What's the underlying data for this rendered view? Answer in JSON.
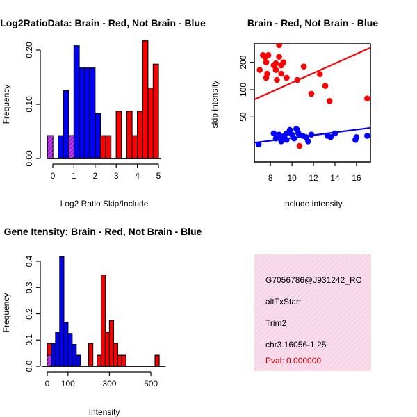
{
  "colors": {
    "brain": "#ff0000",
    "not_brain": "#0000ff",
    "overlap": "#a020f0",
    "pval": "#cc0000",
    "panel_fill": "#f8dcec",
    "panel_hatch": "#efb8d6"
  },
  "chart_data": [
    {
      "type": "bar",
      "title": "Log2RatioData: Brain - Red, Not Brain - Blue",
      "xlabel": "Log2 Ratio Skip/Include",
      "ylabel": "Frequency",
      "xlim": [
        0,
        5
      ],
      "ylim": [
        0,
        0.2
      ],
      "xticks": [
        "0",
        "1",
        "2",
        "3",
        "4",
        "5"
      ],
      "yticks": [
        "0.00",
        "0.10",
        "0.20"
      ],
      "bin_width": 0.25,
      "series": [
        {
          "name": "Not Brain",
          "color": "blue",
          "bins": [
            [
              0.25,
              0.042
            ],
            [
              0.5,
              0.125
            ],
            [
              0.75,
              0.042
            ],
            [
              1.0,
              0.208
            ],
            [
              1.25,
              0.167
            ],
            [
              1.5,
              0.167
            ],
            [
              1.75,
              0.167
            ],
            [
              2.0,
              0.083
            ]
          ]
        },
        {
          "name": "Brain",
          "color": "red",
          "bins": [
            [
              -0.25,
              0.042
            ],
            [
              0.75,
              0.042
            ],
            [
              2.25,
              0.042
            ],
            [
              2.5,
              0.042
            ],
            [
              3.0,
              0.087
            ],
            [
              3.5,
              0.087
            ],
            [
              3.75,
              0.042
            ],
            [
              4.0,
              0.087
            ],
            [
              4.25,
              0.217
            ],
            [
              4.5,
              0.13
            ],
            [
              4.75,
              0.174
            ]
          ]
        },
        {
          "name": "Overlap",
          "color": "purple",
          "bins": [
            [
              -0.25,
              0.042
            ],
            [
              0.75,
              0.042
            ]
          ]
        }
      ]
    },
    {
      "type": "scatter",
      "title": "Brain - Red, Not Brain - Blue",
      "xlabel": "include intensity",
      "ylabel": "skip intensity",
      "xlim": [
        6.5,
        17.3
      ],
      "ylim": [
        16,
        320
      ],
      "xticks": [
        "8",
        "10",
        "12",
        "14",
        "16"
      ],
      "yticks": [
        "50",
        "100",
        "200"
      ],
      "series": [
        {
          "name": "Brain",
          "color": "red",
          "points": [
            [
              7.0,
              165
            ],
            [
              7.3,
              240
            ],
            [
              7.5,
              228
            ],
            [
              7.6,
              200
            ],
            [
              7.6,
              135
            ],
            [
              7.7,
              150
            ],
            [
              7.8,
              240
            ],
            [
              8.3,
              185
            ],
            [
              8.5,
              195
            ],
            [
              8.5,
              165
            ],
            [
              8.6,
              128
            ],
            [
              8.8,
              310
            ],
            [
              8.8,
              230
            ],
            [
              9.0,
              185
            ],
            [
              9.0,
              150
            ],
            [
              9.2,
              200
            ],
            [
              9.5,
              135
            ],
            [
              10.5,
              128
            ],
            [
              10.7,
              24
            ],
            [
              11.1,
              180
            ],
            [
              11.8,
              90
            ],
            [
              12.6,
              148
            ],
            [
              13.1,
              110
            ],
            [
              13.5,
              75
            ],
            [
              17.0,
              80
            ]
          ],
          "fit": [
            [
              6.5,
              78
            ],
            [
              17.3,
              290
            ]
          ]
        },
        {
          "name": "Not Brain",
          "color": "blue",
          "points": [
            [
              6.9,
              25
            ],
            [
              8.3,
              33
            ],
            [
              8.5,
              29
            ],
            [
              8.8,
              32
            ],
            [
              9.0,
              27
            ],
            [
              9.1,
              30
            ],
            [
              9.3,
              31
            ],
            [
              9.5,
              33
            ],
            [
              9.5,
              28
            ],
            [
              9.8,
              36
            ],
            [
              10.0,
              32
            ],
            [
              10.2,
              29
            ],
            [
              10.4,
              37
            ],
            [
              10.5,
              36
            ],
            [
              10.6,
              33
            ],
            [
              11.0,
              31
            ],
            [
              11.3,
              30
            ],
            [
              11.5,
              27
            ],
            [
              11.8,
              32
            ],
            [
              13.3,
              31
            ],
            [
              13.6,
              30
            ],
            [
              14.0,
              33
            ],
            [
              15.9,
              28
            ],
            [
              16.0,
              30
            ],
            [
              17.0,
              31
            ]
          ],
          "fit": [
            [
              6.5,
              26
            ],
            [
              17.3,
              38
            ]
          ]
        }
      ]
    },
    {
      "type": "bar",
      "title": "Gene Itensity: Brain - Red, Not Brain - Blue",
      "xlabel": "Intensity",
      "ylabel": "Frequency",
      "xlim": [
        0,
        560
      ],
      "ylim": [
        0,
        0.4
      ],
      "xticks": [
        "0",
        "100",
        "300",
        "500"
      ],
      "yticks": [
        "0.0",
        "0.1",
        "0.2",
        "0.3",
        "0.4"
      ],
      "bin_width": 20,
      "series": [
        {
          "name": "Not Brain",
          "color": "blue",
          "bins": [
            [
              0,
              0.042
            ],
            [
              20,
              0.087
            ],
            [
              40,
              0.13
            ],
            [
              60,
              0.417
            ],
            [
              80,
              0.167
            ],
            [
              100,
              0.125
            ],
            [
              120,
              0.083
            ],
            [
              140,
              0.042
            ]
          ]
        },
        {
          "name": "Brain",
          "color": "red",
          "bins": [
            [
              0,
              0.087
            ],
            [
              200,
              0.087
            ],
            [
              240,
              0.042
            ],
            [
              260,
              0.348
            ],
            [
              280,
              0.13
            ],
            [
              300,
              0.174
            ],
            [
              320,
              0.087
            ],
            [
              340,
              0.042
            ],
            [
              360,
              0.042
            ],
            [
              520,
              0.042
            ]
          ]
        },
        {
          "name": "Overlap",
          "color": "purple",
          "bins": [
            [
              0,
              0.042
            ]
          ]
        }
      ]
    }
  ],
  "info_panel": {
    "id": "G7056786@J931242_RC",
    "event": "altTxStart",
    "gene": "Trim2",
    "location": "chr3.16056-1.25",
    "pval": "Pval: 0.000000"
  }
}
